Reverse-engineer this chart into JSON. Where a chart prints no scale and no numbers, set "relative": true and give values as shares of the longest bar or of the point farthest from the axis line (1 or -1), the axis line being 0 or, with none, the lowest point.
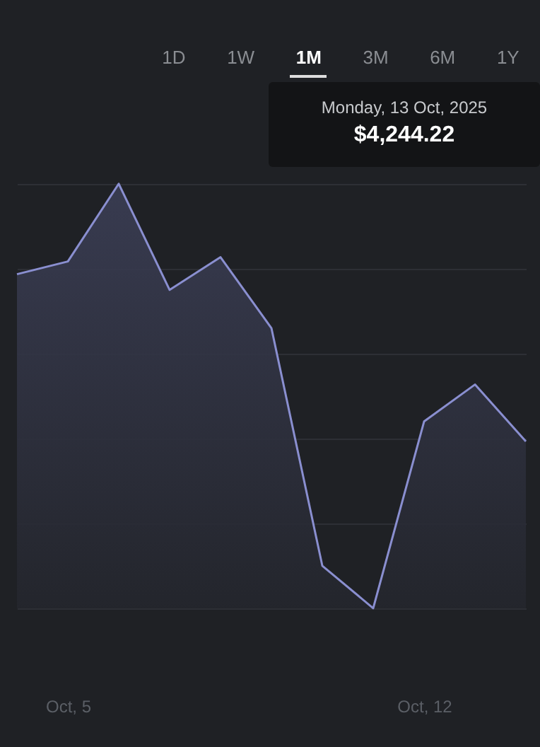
{
  "chart_data": {
    "type": "area",
    "relative": true,
    "categories": [
      null,
      "Oct, 5",
      null,
      null,
      null,
      null,
      null,
      null,
      "Oct, 12",
      null,
      null
    ],
    "values": [
      0.787,
      0.817,
      1,
      0.75,
      0.827,
      0.66,
      0.1,
      0,
      0.44,
      0.527,
      0.393
    ],
    "color": "#8a8fd0",
    "grid": "y",
    "annotations": [
      "1D",
      "1W",
      "1M",
      "3M",
      "6M",
      "1Y",
      "Monday, 13 Oct, 2025",
      "$4,244.22"
    ]
  }
}
